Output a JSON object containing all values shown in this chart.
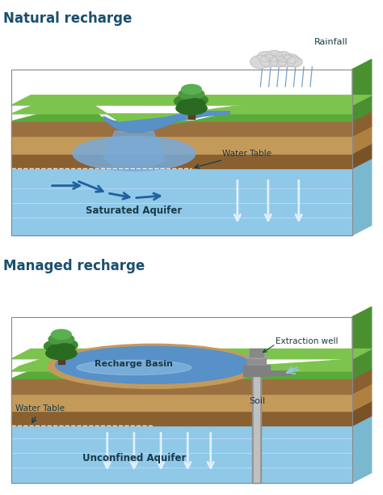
{
  "title1": "Natural recharge",
  "title2": "Managed recharge",
  "label_rainfall": "Rainfall",
  "label_water_table1": "Water Table",
  "label_saturated_aquifer": "Saturated Aquifer",
  "label_recharge_basin": "Recharge Basin",
  "label_extraction_well": "Extraction well",
  "label_soil": "Soil",
  "label_water_table2": "Water Table",
  "label_unconfined_aquifer": "Unconfined Aquifer",
  "bg_color": "#ffffff",
  "title_color": "#1a4f6e",
  "label_color": "#1a3a4a",
  "grass_green1": "#5aaa3a",
  "grass_green2": "#7dc44e",
  "grass_green3": "#4a9030",
  "soil_brown1": "#8B6030",
  "soil_brown2": "#C49A5a",
  "soil_brown3": "#9A7040",
  "soil_brown4": "#b07840",
  "aquifer_blue1": "#90c8e8",
  "aquifer_blue2": "#a8d8f0",
  "water_blue1": "#5890c8",
  "water_blue2": "#78aad8",
  "water_blue3": "#98c8e8",
  "arrow_blue": "#2060a0",
  "arrow_white": "#e0f0ff",
  "cloud_color": "#d8d8d8",
  "cloud_edge": "#b8b8b8",
  "bark_color": "#5d3a1a",
  "foliage1": "#2a6a20",
  "foliage2": "#3a8a30",
  "foliage3": "#4a9a40",
  "foliage4": "#5ab050",
  "pump_gray": "#909090",
  "pump_light": "#b0b0b0",
  "side_face": "#c8a870"
}
